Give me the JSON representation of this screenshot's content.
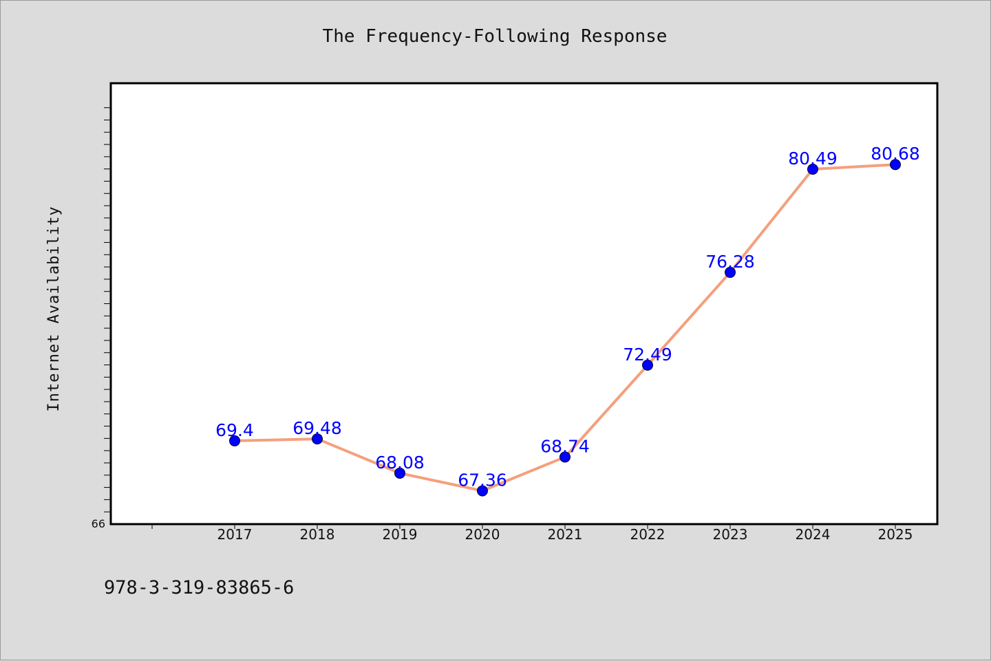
{
  "chart_data": {
    "type": "line",
    "title": "The Frequency-Following Response",
    "ylabel": "Internet Availability",
    "xlabel": "",
    "categories": [
      "2017",
      "2018",
      "2019",
      "2020",
      "2021",
      "2022",
      "2023",
      "2024",
      "2025"
    ],
    "series": [
      {
        "values": [
          69.4,
          69.48,
          68.08,
          67.36,
          68.74,
          72.49,
          76.28,
          80.49,
          80.68
        ],
        "labels": [
          "69.4",
          "69.48",
          "68.08",
          "67.36",
          "68.74",
          "72.49",
          "76.28",
          "80.49",
          "80.68"
        ],
        "line_color": "#f4a07c",
        "marker_color": "#0000ff",
        "label_color": "#0000ff"
      }
    ],
    "y_axis_min_label": "66",
    "ylim": [
      66,
      84
    ],
    "grid": false,
    "legend": "none"
  },
  "footer": {
    "text": "978-3-319-83865-6"
  },
  "colors": {
    "background": "#dcdcdc",
    "plot_background": "#ffffff",
    "axis": "#000000"
  }
}
